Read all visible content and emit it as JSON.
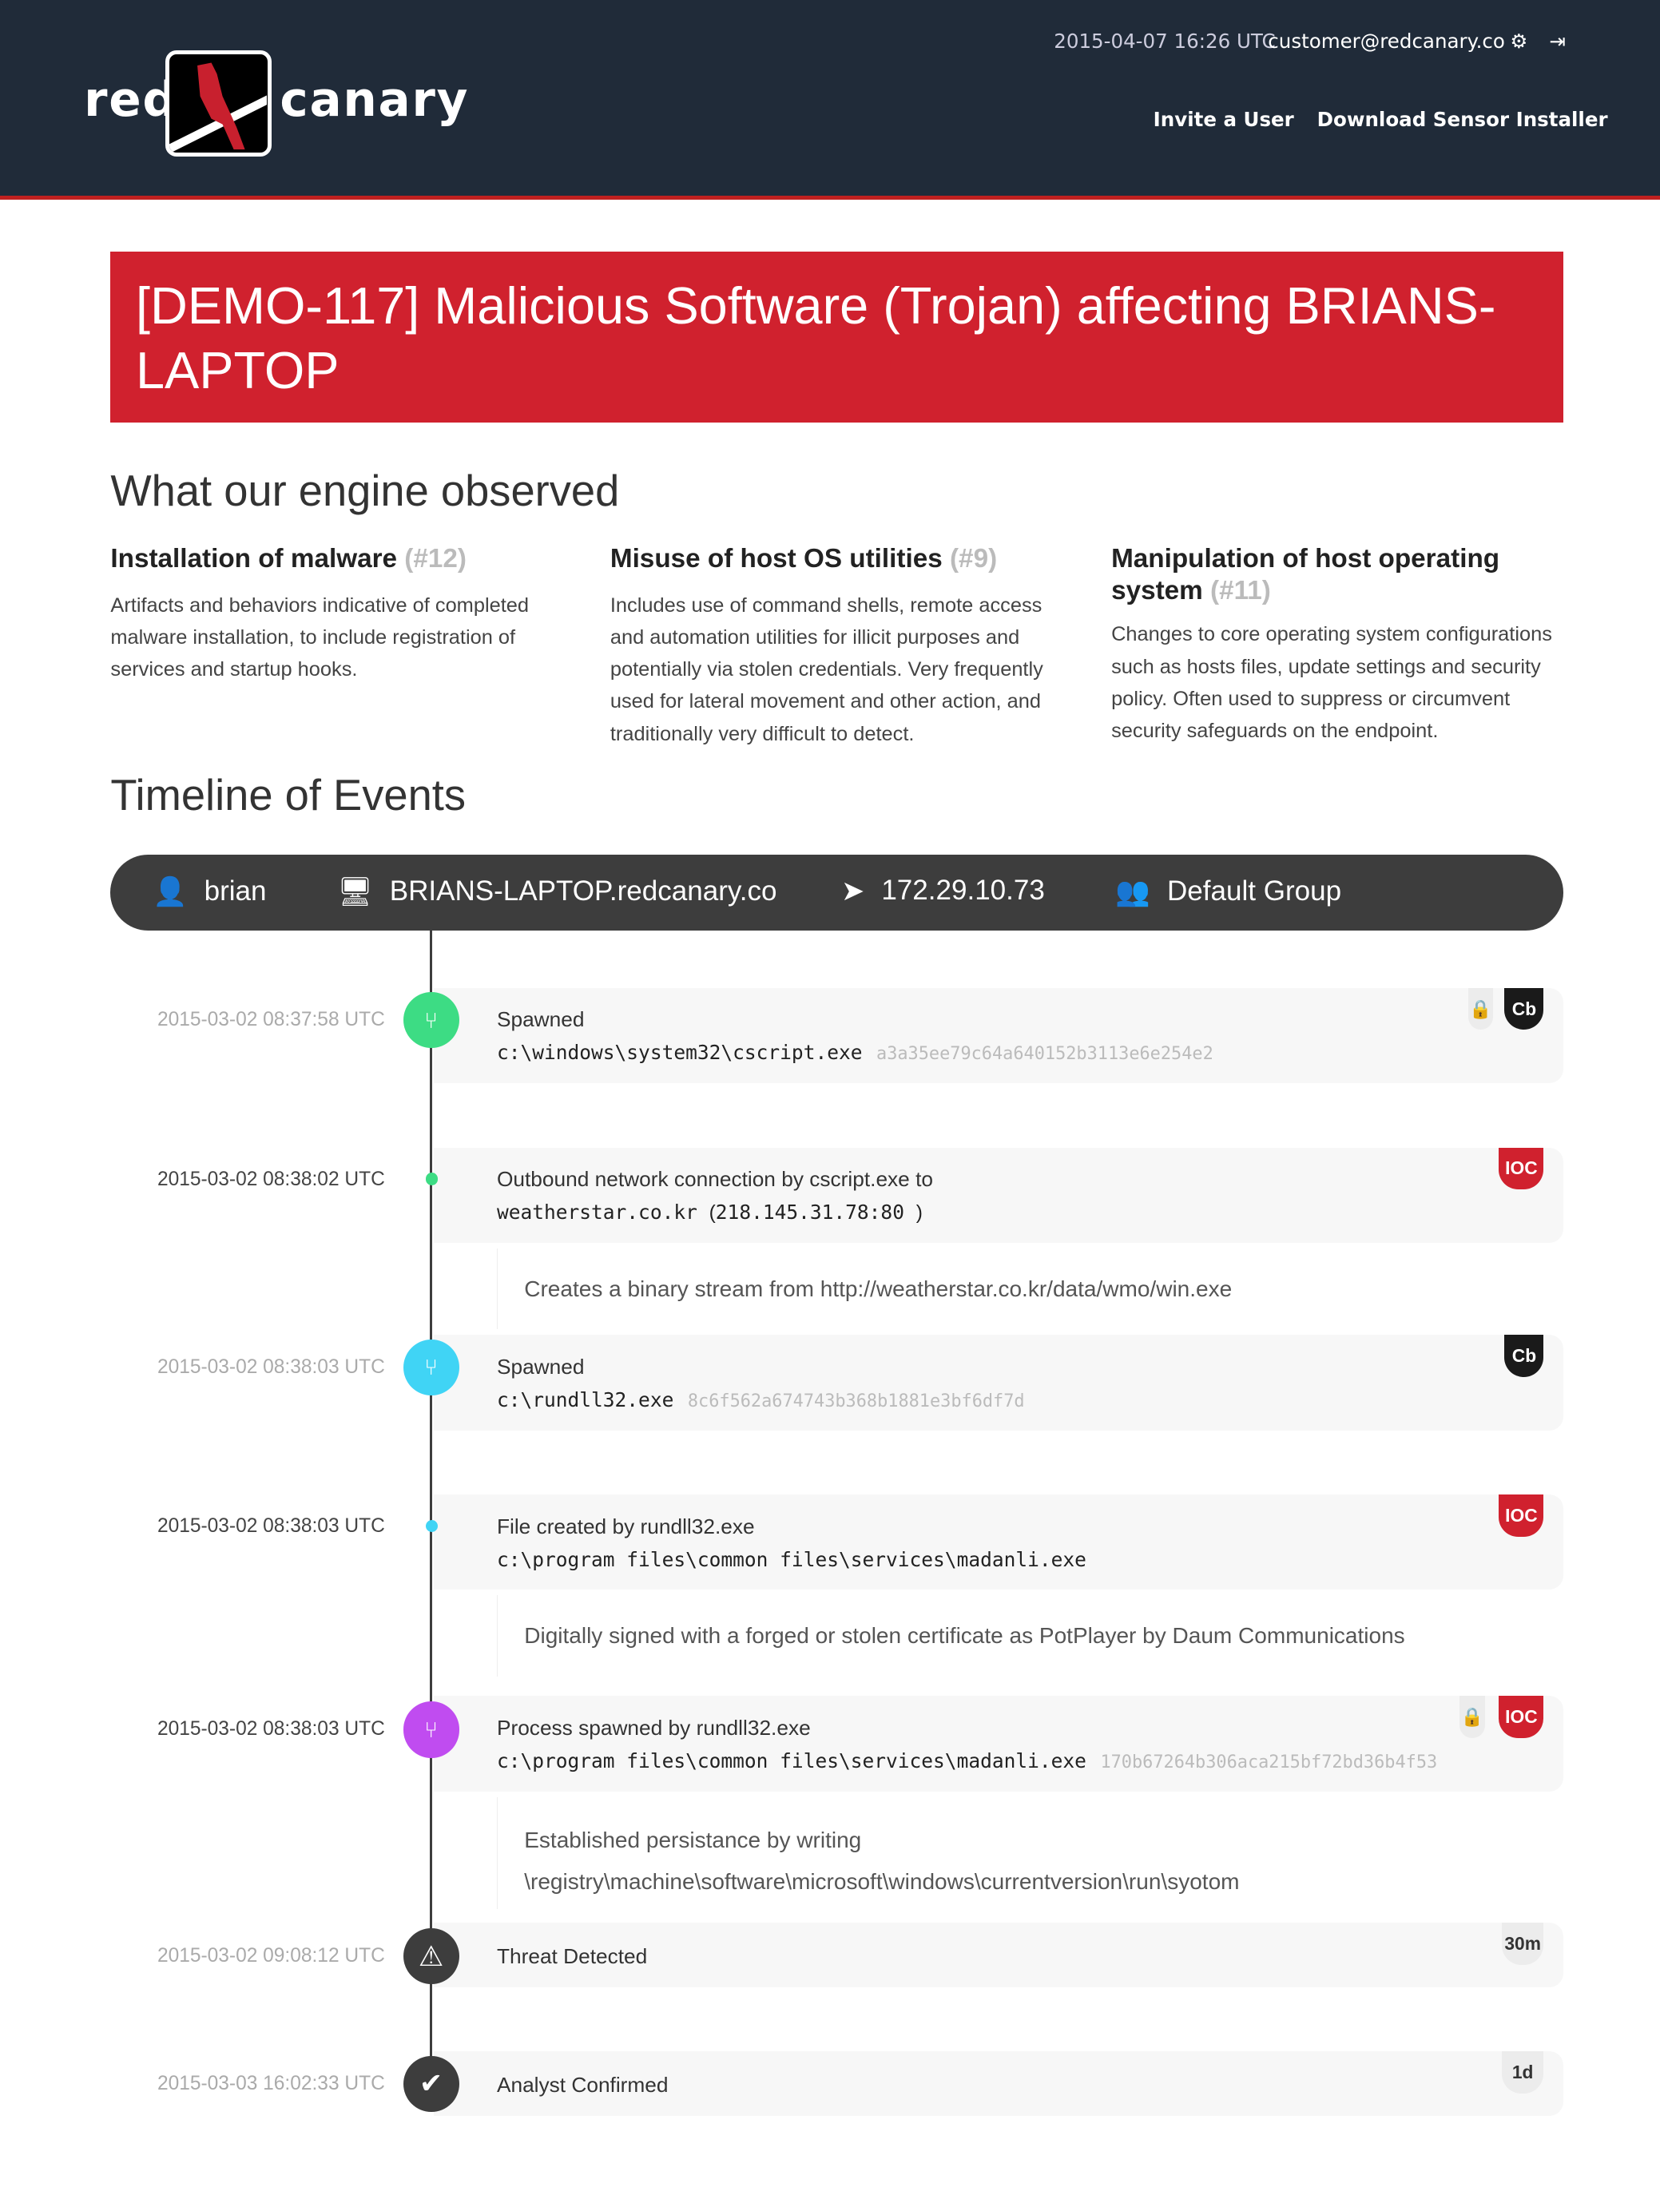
{
  "header": {
    "logo_left": "red",
    "logo_right": "canary",
    "datetime": "2015-04-07 16:26 UTC",
    "user_email": "customer@redcanary.co",
    "nav": [
      "Invite a User",
      "Download Sensor Installer"
    ],
    "colors": {
      "bg": "#202b39",
      "accent": "#c0201f"
    }
  },
  "detection": {
    "title": "[DEMO-117] Malicious Software (Trojan) affecting BRIANS-LAPTOP",
    "color": "#d0212e"
  },
  "observed": {
    "heading": "What our engine observed",
    "items": [
      {
        "title": "Installation of malware",
        "ref": "(#12)",
        "desc": "Artifacts and behaviors indicative of completed malware installation, to include registration of services and startup hooks."
      },
      {
        "title": "Misuse of host OS utilities",
        "ref": "(#9)",
        "desc": "Includes use of command shells, remote access and automation utilities for illicit purposes and potentially via stolen credentials. Very frequently used for lateral movement and other action, and traditionally very difficult to detect."
      },
      {
        "title": "Manipulation of host operating system",
        "ref": "(#11)",
        "desc": "Changes to core operating system configurations such as hosts files, update settings and security policy. Often used to suppress or circumvent security safeguards on the endpoint."
      }
    ]
  },
  "timeline": {
    "heading": "Timeline of Events",
    "host": {
      "user": "brian",
      "hostname": "BRIANS-LAPTOP.redcanary.co",
      "ip": "172.29.10.73",
      "group": "Default Group"
    },
    "events": [
      {
        "time": "2015-03-02 08:37:58 UTC",
        "label": "Spawned",
        "path": "c:\\windows\\system32\\cscript.exe",
        "hash": "a3a35ee79c64a640152b3113e6e254e2",
        "badges": [
          "lock",
          "Cb"
        ],
        "color": "#3ddc84"
      },
      {
        "time": "2015-03-02 08:38:02 UTC",
        "label": "Outbound network connection by cscript.exe to",
        "path": "weatherstar.co.kr",
        "addr": "218.145.31.78:80",
        "badges": [
          "IOC"
        ],
        "detail": "Creates a binary stream from http://weatherstar.co.kr/data/wmo/win.exe"
      },
      {
        "time": "2015-03-02 08:38:03 UTC",
        "label": "Spawned",
        "path": "c:\\rundll32.exe",
        "hash": "8c6f562a674743b368b1881e3bf6df7d",
        "badges": [
          "Cb"
        ],
        "color": "#40d4f5"
      },
      {
        "time": "2015-03-02 08:38:03 UTC",
        "label": "File created by rundll32.exe",
        "path": "c:\\program files\\common files\\services\\madanli.exe",
        "badges": [
          "IOC"
        ],
        "detail": "Digitally signed with a forged or stolen certificate as PotPlayer by Daum Communications"
      },
      {
        "time": "2015-03-02 08:38:03 UTC",
        "label": "Process spawned by rundll32.exe",
        "path": "c:\\program files\\common files\\services\\madanli.exe",
        "hash": "170b67264b306aca215bf72bd36b4f53",
        "badges": [
          "lock",
          "IOC"
        ],
        "color": "#c04cf0",
        "detail": "Established persistance by writing",
        "detail2": "\\registry\\machine\\software\\microsoft\\windows\\currentversion\\run\\syotom"
      },
      {
        "time": "2015-03-02 09:08:12 UTC",
        "label": "Threat Detected",
        "elapsed": "30m"
      },
      {
        "time": "2015-03-03 16:02:33 UTC",
        "label": "Analyst Confirmed",
        "elapsed": "1d"
      }
    ]
  }
}
